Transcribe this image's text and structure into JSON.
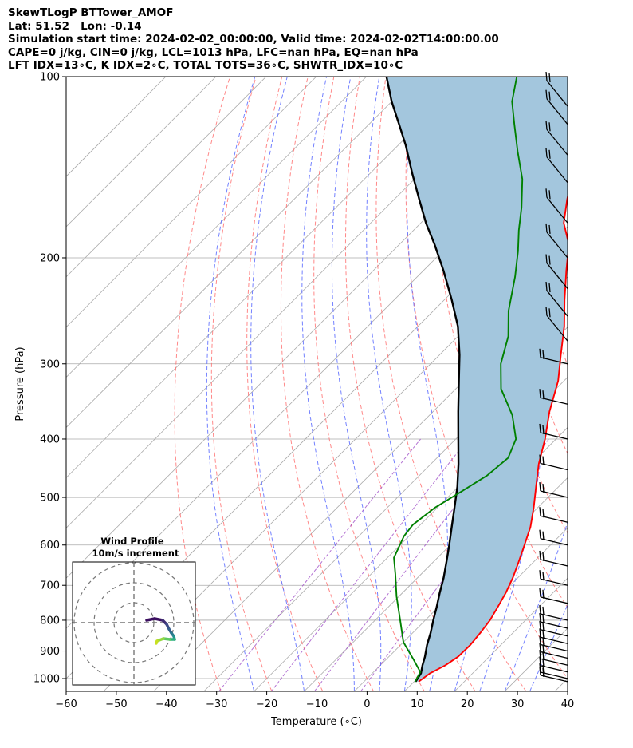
{
  "header": {
    "line1": "SkewTLogP BTTower_AMOF",
    "line2": "Lat: 51.52   Lon: -0.14",
    "line3": "Simulation start time: 2024-02-02_00:00:00, Valid time: 2024-02-02T14:00:00.00",
    "line4": "CAPE=0 j/kg, CIN=0 j/kg, LCL=1013 hPa, LFC=nan hPa, EQ=nan hPa",
    "line5": "LFT IDX=13∘C, K IDX=2∘C, TOTAL TOTS=36∘C, SHWTR_IDX=10∘C"
  },
  "colors": {
    "temperature": "#ff0000",
    "dewpoint": "#008000",
    "parcel": "#000000",
    "cape_fill": "#a3c6dd",
    "isotherm": "#aaaaaa",
    "dry_adiabat": "#ff6b6b",
    "moist_adiabat": "#5a6bff",
    "mixing_ratio": "#a050c8"
  },
  "chart_data": {
    "type": "line",
    "title": "",
    "xlabel": "Temperature (∘C)",
    "ylabel": "Pressure (hPa)",
    "xlim": [
      -60,
      40
    ],
    "ylim": [
      1050,
      100
    ],
    "y_scale": "log",
    "skew": "skew-T",
    "grid": true,
    "x_ticks": [
      "−60",
      "−50",
      "−40",
      "−30",
      "−20",
      "−10",
      "0",
      "10",
      "20",
      "30",
      "40"
    ],
    "y_ticks": [
      "1000",
      "900",
      "800",
      "700",
      "600",
      "500",
      "400",
      "300",
      "200",
      "100"
    ],
    "x_tick_values": [
      -60,
      -50,
      -40,
      -30,
      -20,
      -10,
      0,
      10,
      20,
      30,
      40
    ],
    "y_tick_values": [
      1000,
      900,
      800,
      700,
      600,
      500,
      400,
      300,
      200,
      100
    ],
    "series": [
      {
        "name": "",
        "role": "temperature",
        "points": [
          [
            10.9,
            1012
          ],
          [
            11.5,
            980
          ],
          [
            13.0,
            950
          ],
          [
            13.8,
            920
          ],
          [
            13.9,
            880
          ],
          [
            13.5,
            840
          ],
          [
            12.9,
            800
          ],
          [
            11.8,
            760
          ],
          [
            10.6,
            720
          ],
          [
            9.0,
            680
          ],
          [
            7.0,
            640
          ],
          [
            4.8,
            600
          ],
          [
            2.4,
            560
          ],
          [
            -0.8,
            520
          ],
          [
            -4.5,
            480
          ],
          [
            -8.5,
            440
          ],
          [
            -12.2,
            400
          ],
          [
            -16.8,
            360
          ],
          [
            -21.2,
            320
          ],
          [
            -25.8,
            290
          ],
          [
            -30.8,
            260
          ],
          [
            -36.0,
            235
          ],
          [
            -41.5,
            210
          ],
          [
            -46.2,
            190
          ],
          [
            -51.5,
            175
          ],
          [
            -55.5,
            160
          ],
          [
            -59.5,
            145
          ],
          [
            -64.0,
            130
          ],
          [
            -69.0,
            120
          ],
          [
            -73.0,
            110
          ],
          [
            -77.0,
            100
          ]
        ]
      },
      {
        "name": "",
        "role": "dewpoint",
        "points": [
          [
            10.2,
            1012
          ],
          [
            9.3,
            975
          ],
          [
            5.5,
            930
          ],
          [
            0.0,
            870
          ],
          [
            -5.0,
            800
          ],
          [
            -10.5,
            730
          ],
          [
            -15.2,
            670
          ],
          [
            -18.7,
            630
          ],
          [
            -21.0,
            580
          ],
          [
            -21.5,
            555
          ],
          [
            -20.5,
            520
          ],
          [
            -18.5,
            490
          ],
          [
            -16.5,
            460
          ],
          [
            -15.8,
            430
          ],
          [
            -18.0,
            400
          ],
          [
            -23.5,
            365
          ],
          [
            -31.0,
            330
          ],
          [
            -36.0,
            300
          ],
          [
            -40.0,
            270
          ],
          [
            -45.0,
            245
          ],
          [
            -50.5,
            215
          ],
          [
            -55.0,
            195
          ],
          [
            -59.0,
            180
          ],
          [
            -63.0,
            165
          ],
          [
            -68.5,
            148
          ],
          [
            -75.0,
            133
          ],
          [
            -81.0,
            120
          ],
          [
            -86.0,
            110
          ],
          [
            -90.0,
            100
          ]
        ]
      },
      {
        "name": "",
        "role": "parcel",
        "points": [
          [
            10.3,
            1012
          ],
          [
            9.7,
            980
          ],
          [
            8.4,
            950
          ],
          [
            7.2,
            920
          ],
          [
            5.3,
            880
          ],
          [
            3.6,
            840
          ],
          [
            1.6,
            800
          ],
          [
            -0.4,
            760
          ],
          [
            -2.6,
            720
          ],
          [
            -4.8,
            680
          ],
          [
            -7.4,
            640
          ],
          [
            -10.2,
            600
          ],
          [
            -13.3,
            560
          ],
          [
            -16.6,
            520
          ],
          [
            -20.2,
            480
          ],
          [
            -24.5,
            440
          ],
          [
            -29.5,
            400
          ],
          [
            -35.0,
            360
          ],
          [
            -41.0,
            320
          ],
          [
            -46.0,
            290
          ],
          [
            -52.0,
            260
          ],
          [
            -58.5,
            235
          ],
          [
            -66.0,
            210
          ],
          [
            -73.0,
            190
          ],
          [
            -79.0,
            175
          ],
          [
            -85.0,
            160
          ],
          [
            -91.5,
            145
          ],
          [
            -98.5,
            130
          ],
          [
            -104.0,
            120
          ],
          [
            -110.0,
            110
          ],
          [
            -116.0,
            100
          ]
        ]
      }
    ],
    "wind_barbs": {
      "pressures": [
        1012,
        1000,
        975,
        950,
        925,
        900,
        875,
        850,
        825,
        800,
        750,
        700,
        650,
        600,
        550,
        500,
        450,
        400,
        350,
        300,
        275,
        250,
        225,
        200,
        175,
        150,
        135,
        120,
        112
      ],
      "lengths": "long barbs at low levels (~15-20 m/s), shorter aloft"
    },
    "inset": {
      "title_line1": "Wind Profile",
      "title_line2": "10m/s increment"
    }
  }
}
